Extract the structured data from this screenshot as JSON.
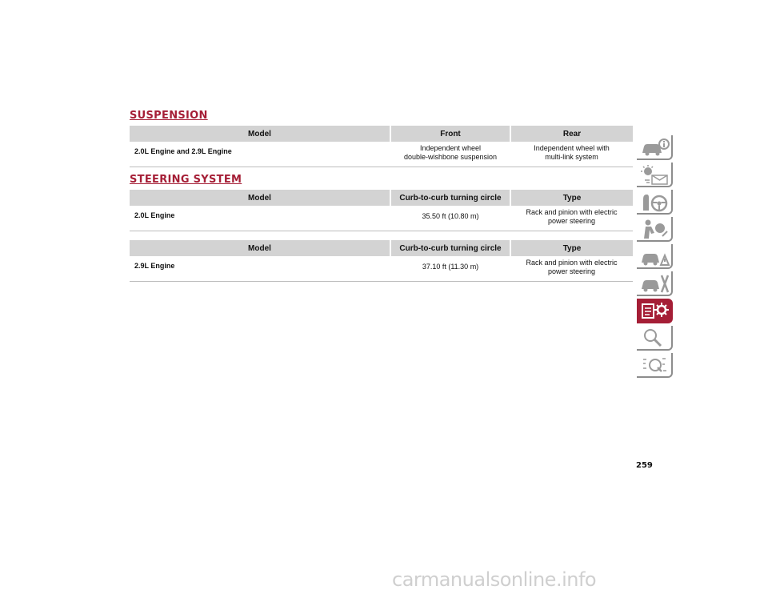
{
  "suspension": {
    "title": "SUSPENSION",
    "headers": [
      "Model",
      "Front",
      "Rear"
    ],
    "rows": [
      {
        "model": "2.0L Engine and 2.9L Engine",
        "front": [
          "Independent wheel",
          "double-wishbone suspension"
        ],
        "rear": [
          "Independent wheel with",
          "multi-link system"
        ]
      }
    ]
  },
  "steering": {
    "title": "STEERING SYSTEM",
    "tables": [
      {
        "headers": [
          "Model",
          "Curb-to-curb turning circle",
          "Type"
        ],
        "row": {
          "model": "2.0L Engine",
          "circle": "35.50 ft (10.80 m)",
          "type": [
            "Rack and pinion with electric",
            "power steering"
          ]
        }
      },
      {
        "headers": [
          "Model",
          "Curb-to-curb turning circle",
          "Type"
        ],
        "row": {
          "model": "2.9L Engine",
          "circle": "37.10 ft (11.30 m)",
          "type": [
            "Rack and pinion with electric",
            "power steering"
          ]
        }
      }
    ]
  },
  "nav": {
    "icons": [
      "car-info-icon",
      "dashboard-lights-icon",
      "steering-wheel-icon",
      "airbag-safety-icon",
      "warning-triangle-car-icon",
      "car-service-tools-icon",
      "technical-specs-icon",
      "search-index-icon",
      "multilanguage-icon"
    ],
    "active_index": 6,
    "accent": "#a51e36",
    "line_color": "#8d8d8d"
  },
  "page_number": "259",
  "watermark": "carmanualsonline.info"
}
